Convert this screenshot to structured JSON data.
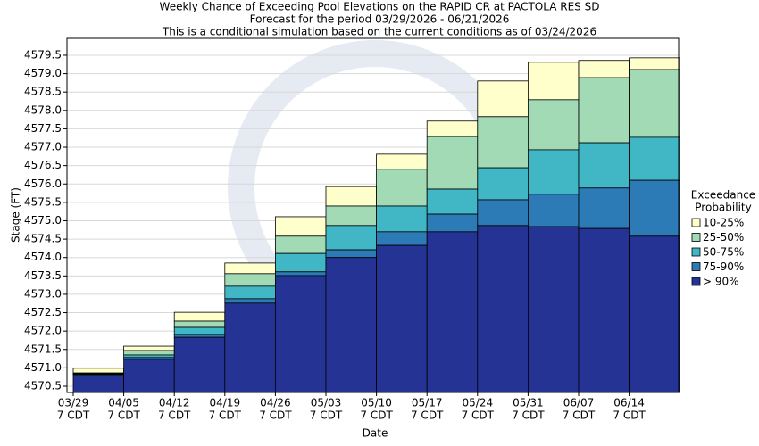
{
  "chart_data": {
    "type": "floating_bar",
    "title": [
      "Weekly Chance of Exceeding Pool Elevations on the RAPID CR at PACTOLA RES SD",
      "Forecast for the period 03/29/2026 - 06/21/2026",
      "This is a conditional simulation based on the current conditions as of 03/24/2026"
    ],
    "x_label": "Date",
    "y_label": "Stage (FT)",
    "categories": [
      "03/29",
      "04/05",
      "04/12",
      "04/19",
      "04/26",
      "05/03",
      "05/10",
      "05/17",
      "05/24",
      "05/31",
      "06/07",
      "06/14"
    ],
    "category_sublabels": [
      "7 CDT",
      "7 CDT",
      "7 CDT",
      "7 CDT",
      "7 CDT",
      "7 CDT",
      "7 CDT",
      "7 CDT",
      "7 CDT",
      "7 CDT",
      "7 CDT",
      "7 CDT"
    ],
    "legend_title": [
      "Exceedance",
      "Probability"
    ],
    "series": [
      {
        "name": "10-25%",
        "color": "#ffffcc",
        "values": [
          4570.99,
          4571.59,
          4572.51,
          4573.85,
          4575.11,
          4575.93,
          4576.81,
          4577.71,
          4578.8,
          4579.31,
          4579.36,
          4579.43
        ]
      },
      {
        "name": "25-50%",
        "color": "#a1dab4",
        "values": [
          4570.86,
          4571.47,
          4572.27,
          4573.56,
          4574.58,
          4575.4,
          4576.4,
          4577.29,
          4577.83,
          4578.29,
          4578.89,
          4579.11
        ]
      },
      {
        "name": "50-75%",
        "color": "#41b6c4",
        "values": [
          4570.84,
          4571.35,
          4572.1,
          4573.22,
          4574.11,
          4574.87,
          4575.4,
          4575.86,
          4576.44,
          4576.93,
          4577.12,
          4577.27
        ]
      },
      {
        "name": "75-90%",
        "color": "#2c7bb6",
        "values": [
          4570.82,
          4571.28,
          4571.91,
          4572.88,
          4573.61,
          4574.21,
          4574.7,
          4575.18,
          4575.57,
          4575.72,
          4575.89,
          4576.1
        ]
      },
      {
        "name": "> 90%",
        "color": "#253494",
        "values": [
          4570.79,
          4571.23,
          4571.83,
          4572.76,
          4573.51,
          4574.0,
          4574.33,
          4574.7,
          4574.87,
          4574.84,
          4574.79,
          4574.58
        ]
      }
    ],
    "ylim": [
      4570.33,
      4579.96
    ],
    "yticks": [
      4570.5,
      {
        "value": 4571,
        "label": "4571.0"
      },
      4571.5,
      {
        "value": 4572,
        "label": "4572.0"
      },
      4572.5,
      {
        "value": 4573,
        "label": "4573.0"
      },
      4573.5,
      {
        "value": 4574,
        "label": "4574.0"
      },
      4574.5,
      {
        "value": 4575,
        "label": "4575.0"
      },
      4575.5,
      {
        "value": 4576,
        "label": "4576.0"
      },
      4576.5,
      {
        "value": 4577,
        "label": "4577.0"
      },
      4577.5,
      {
        "value": 4578,
        "label": "4578.0"
      },
      4578.5,
      {
        "value": 4579,
        "label": "4579.0"
      },
      4579.5
    ],
    "grid": true
  }
}
